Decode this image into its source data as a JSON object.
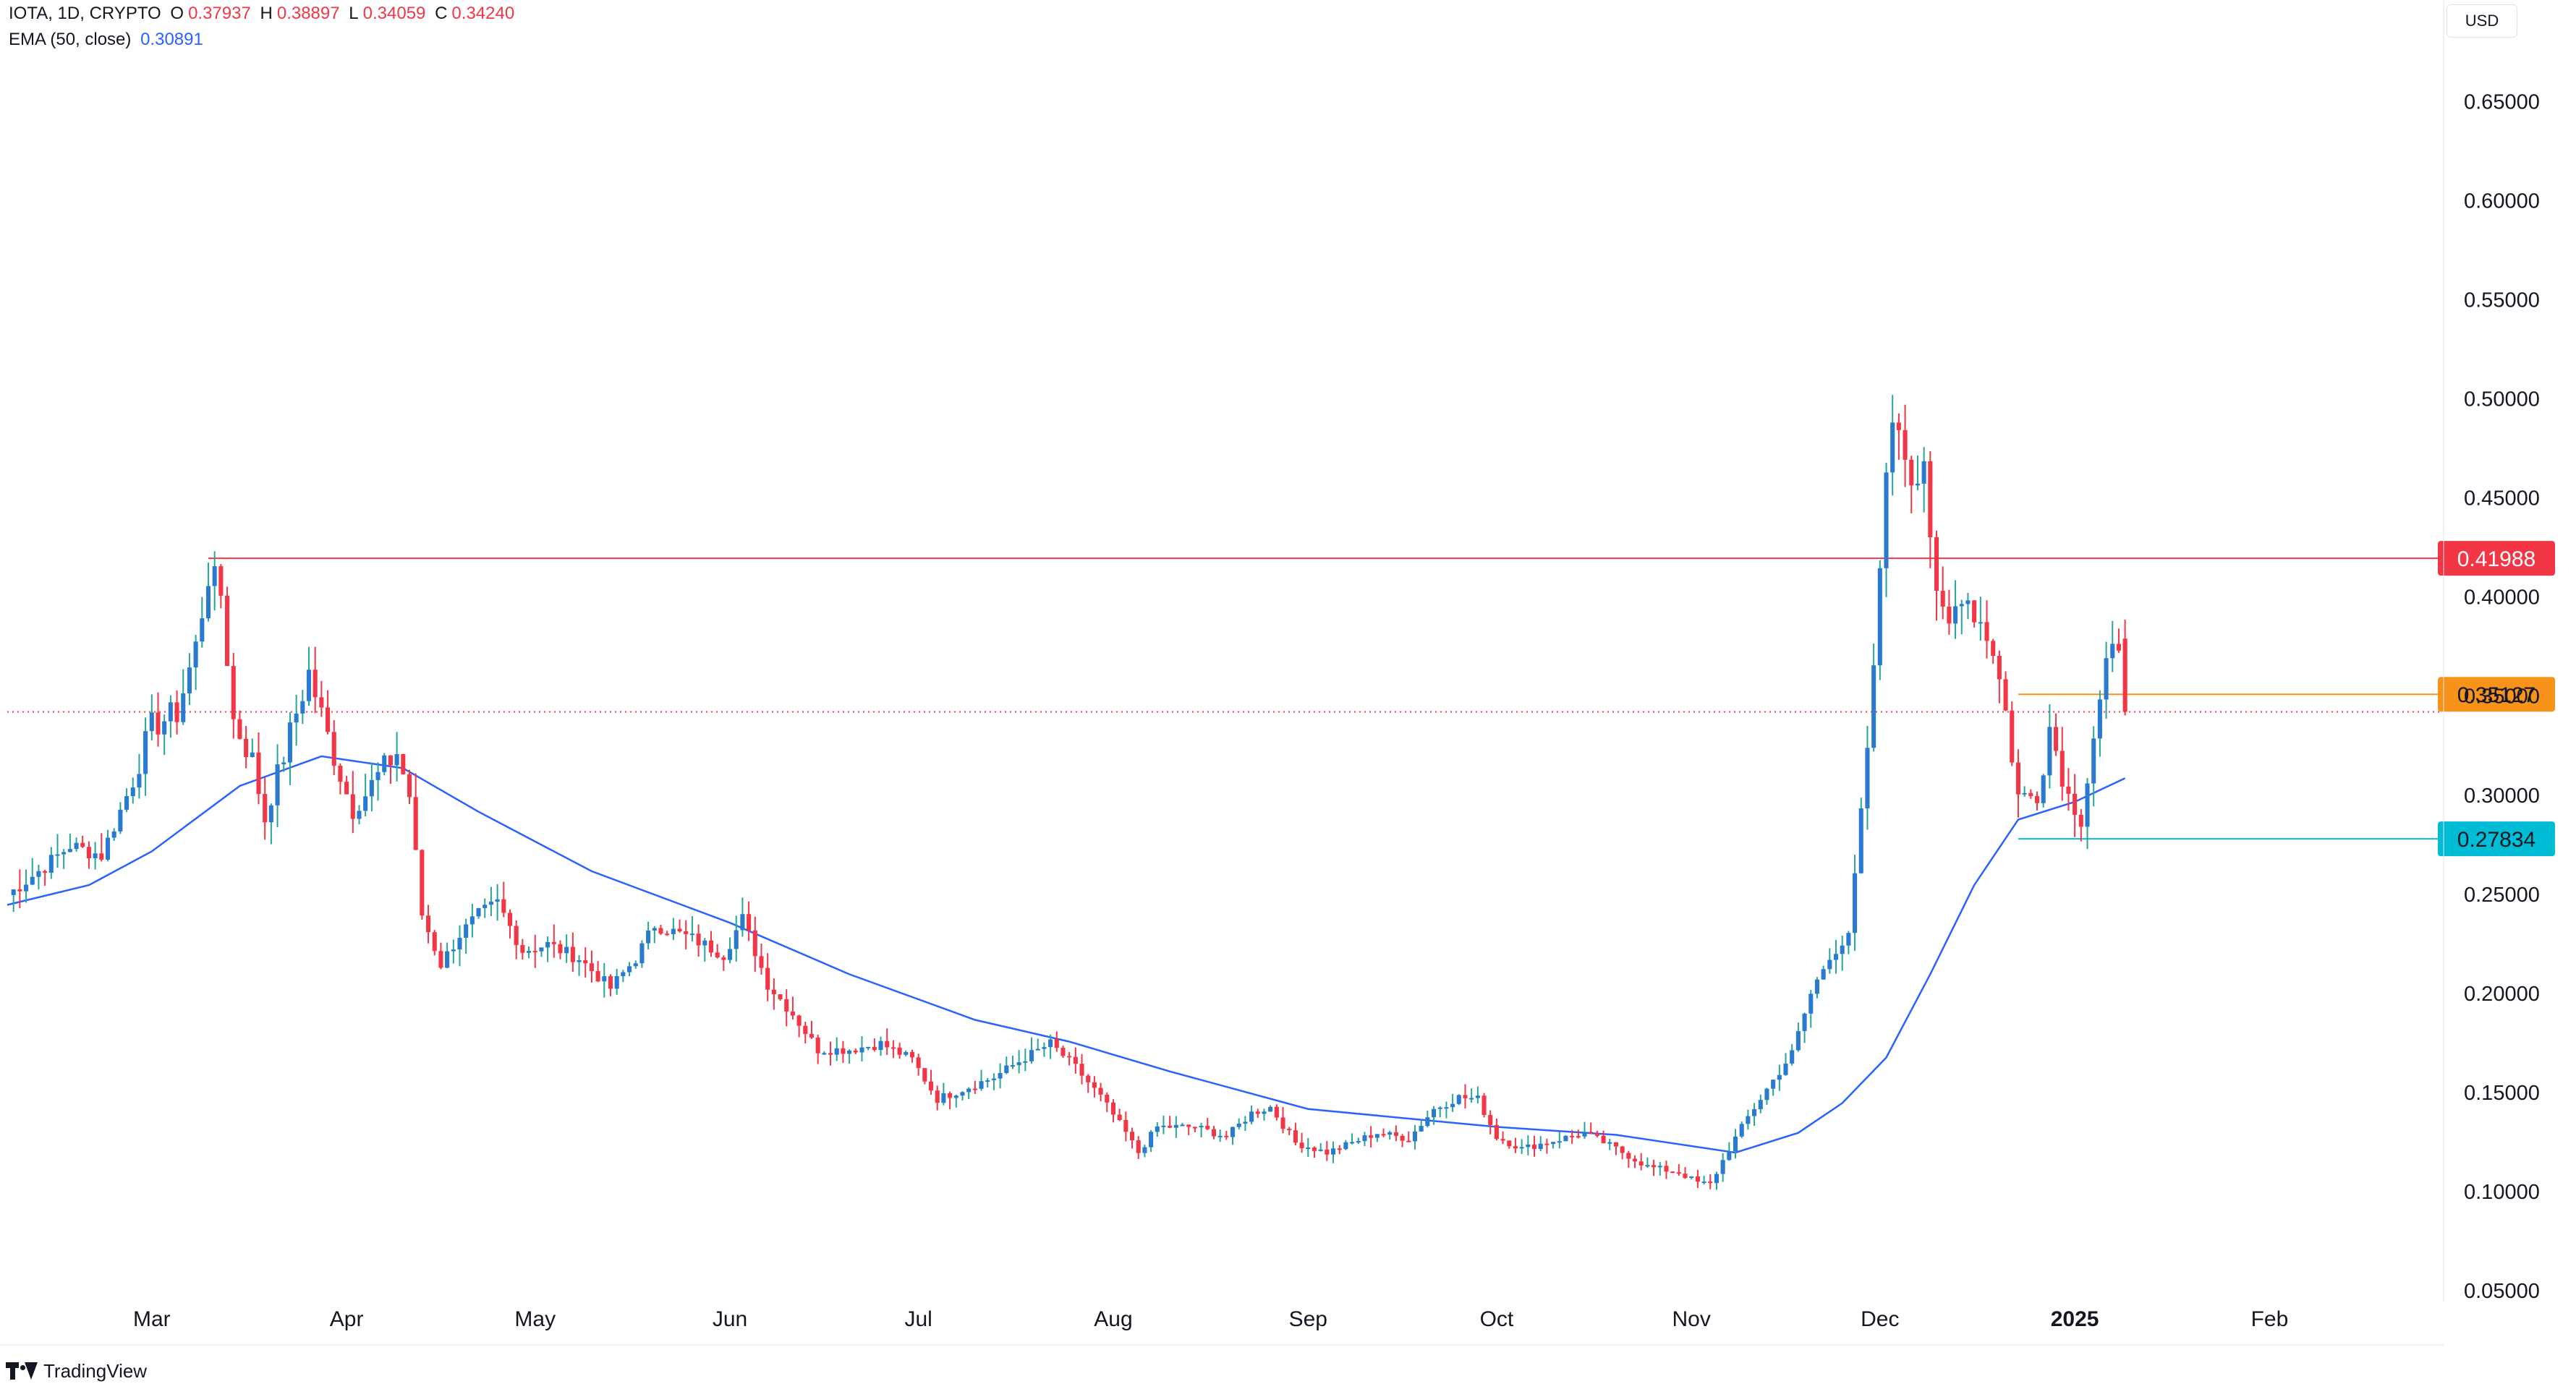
{
  "legend": {
    "symbol": "IOTA, 1D, CRYPTO",
    "o_label": "O",
    "o_value": "0.37937",
    "h_label": "H",
    "h_value": "0.38897",
    "l_label": "L",
    "l_value": "0.34059",
    "c_label": "C",
    "c_value": "0.34240",
    "ema_label": "EMA (50, close)",
    "ema_value": "0.30891"
  },
  "currency": "USD",
  "branding": "TradingView",
  "colors": {
    "up": "#2a7ad0",
    "down": "#f23645",
    "wick_up": "#26a69a",
    "wick_down": "#f23645",
    "ema": "#2962ff",
    "resistance": "#f23645",
    "mid_level": "#f7931a",
    "support": "#00bcd4",
    "last_price": "#f23645",
    "axis_text": "#131722"
  },
  "chart_data": {
    "type": "candlestick",
    "symbol": "IOTA",
    "interval": "1D",
    "exchange": "CRYPTO",
    "title": "",
    "xlabel": "",
    "ylabel": "",
    "ylim": [
      0.05,
      0.66
    ],
    "y_ticks": [
      "0.05000",
      "0.10000",
      "0.15000",
      "0.20000",
      "0.25000",
      "0.30000",
      "0.35000",
      "0.40000",
      "0.45000",
      "0.50000",
      "0.55000",
      "0.60000",
      "0.65000"
    ],
    "x_ticks": [
      {
        "label": "Mar",
        "date": "2024-03-01"
      },
      {
        "label": "Apr",
        "date": "2024-04-01"
      },
      {
        "label": "May",
        "date": "2024-05-01"
      },
      {
        "label": "Jun",
        "date": "2024-06-01"
      },
      {
        "label": "Jul",
        "date": "2024-07-01"
      },
      {
        "label": "Aug",
        "date": "2024-08-01"
      },
      {
        "label": "Sep",
        "date": "2024-09-01"
      },
      {
        "label": "Oct",
        "date": "2024-10-01"
      },
      {
        "label": "Nov",
        "date": "2024-11-01"
      },
      {
        "label": "Dec",
        "date": "2024-12-01"
      },
      {
        "label": "2025",
        "date": "2025-01-01"
      },
      {
        "label": "Feb",
        "date": "2025-02-01"
      }
    ],
    "x_range": [
      "2024-02-07",
      "2025-02-28"
    ],
    "grid": false,
    "legend_position": "top-left",
    "price_path": [
      [
        "2024-02-07",
        0.25
      ],
      [
        "2024-02-12",
        0.262
      ],
      [
        "2024-02-17",
        0.275
      ],
      [
        "2024-02-22",
        0.27
      ],
      [
        "2024-02-26",
        0.3
      ],
      [
        "2024-03-01",
        0.335
      ],
      [
        "2024-03-05",
        0.342
      ],
      [
        "2024-03-08",
        0.375
      ],
      [
        "2024-03-10",
        0.412
      ],
      [
        "2024-03-12",
        0.402
      ],
      [
        "2024-03-14",
        0.338
      ],
      [
        "2024-03-17",
        0.318
      ],
      [
        "2024-03-19",
        0.288
      ],
      [
        "2024-03-21",
        0.31
      ],
      [
        "2024-03-24",
        0.342
      ],
      [
        "2024-03-26",
        0.362
      ],
      [
        "2024-03-29",
        0.33
      ],
      [
        "2024-04-02",
        0.292
      ],
      [
        "2024-04-06",
        0.31
      ],
      [
        "2024-04-09",
        0.322
      ],
      [
        "2024-04-11",
        0.3
      ],
      [
        "2024-04-13",
        0.24
      ],
      [
        "2024-04-16",
        0.215
      ],
      [
        "2024-04-19",
        0.23
      ],
      [
        "2024-04-22",
        0.24
      ],
      [
        "2024-04-25",
        0.246
      ],
      [
        "2024-04-29",
        0.222
      ],
      [
        "2024-05-03",
        0.225
      ],
      [
        "2024-05-08",
        0.218
      ],
      [
        "2024-05-13",
        0.203
      ],
      [
        "2024-05-17",
        0.218
      ],
      [
        "2024-05-20",
        0.235
      ],
      [
        "2024-05-26",
        0.228
      ],
      [
        "2024-05-31",
        0.22
      ],
      [
        "2024-06-03",
        0.238
      ],
      [
        "2024-06-07",
        0.205
      ],
      [
        "2024-06-11",
        0.19
      ],
      [
        "2024-06-15",
        0.172
      ],
      [
        "2024-06-20",
        0.172
      ],
      [
        "2024-06-25",
        0.175
      ],
      [
        "2024-06-30",
        0.167
      ],
      [
        "2024-07-04",
        0.147
      ],
      [
        "2024-07-08",
        0.152
      ],
      [
        "2024-07-13",
        0.158
      ],
      [
        "2024-07-18",
        0.168
      ],
      [
        "2024-07-22",
        0.175
      ],
      [
        "2024-07-26",
        0.163
      ],
      [
        "2024-07-30",
        0.148
      ],
      [
        "2024-08-03",
        0.13
      ],
      [
        "2024-08-05",
        0.12
      ],
      [
        "2024-08-08",
        0.133
      ],
      [
        "2024-08-14",
        0.133
      ],
      [
        "2024-08-19",
        0.128
      ],
      [
        "2024-08-23",
        0.14
      ],
      [
        "2024-08-26",
        0.143
      ],
      [
        "2024-08-30",
        0.125
      ],
      [
        "2024-09-04",
        0.12
      ],
      [
        "2024-09-08",
        0.125
      ],
      [
        "2024-09-12",
        0.13
      ],
      [
        "2024-09-17",
        0.127
      ],
      [
        "2024-09-21",
        0.142
      ],
      [
        "2024-09-25",
        0.148
      ],
      [
        "2024-09-28",
        0.147
      ],
      [
        "2024-10-01",
        0.128
      ],
      [
        "2024-10-05",
        0.122
      ],
      [
        "2024-10-10",
        0.126
      ],
      [
        "2024-10-15",
        0.13
      ],
      [
        "2024-10-20",
        0.122
      ],
      [
        "2024-10-25",
        0.113
      ],
      [
        "2024-10-30",
        0.11
      ],
      [
        "2024-11-02",
        0.105
      ],
      [
        "2024-11-04",
        0.104
      ],
      [
        "2024-11-07",
        0.122
      ],
      [
        "2024-11-10",
        0.138
      ],
      [
        "2024-11-13",
        0.152
      ],
      [
        "2024-11-17",
        0.17
      ],
      [
        "2024-11-20",
        0.2
      ],
      [
        "2024-11-23",
        0.22
      ],
      [
        "2024-11-26",
        0.228
      ],
      [
        "2024-11-28",
        0.29
      ],
      [
        "2024-11-30",
        0.36
      ],
      [
        "2024-12-02",
        0.472
      ],
      [
        "2024-12-04",
        0.488
      ],
      [
        "2024-12-06",
        0.462
      ],
      [
        "2024-12-08",
        0.472
      ],
      [
        "2024-12-10",
        0.395
      ],
      [
        "2024-12-12",
        0.385
      ],
      [
        "2024-12-14",
        0.405
      ],
      [
        "2024-12-17",
        0.388
      ],
      [
        "2024-12-19",
        0.375
      ],
      [
        "2024-12-21",
        0.342
      ],
      [
        "2024-12-23",
        0.3
      ],
      [
        "2024-12-26",
        0.3
      ],
      [
        "2024-12-28",
        0.335
      ],
      [
        "2024-12-31",
        0.3
      ],
      [
        "2025-01-02",
        0.288
      ],
      [
        "2025-01-04",
        0.33
      ],
      [
        "2025-01-06",
        0.362
      ],
      [
        "2025-01-08",
        0.379
      ],
      [
        "2025-01-09",
        0.3424
      ]
    ],
    "series": [
      {
        "name": "EMA (50, close)",
        "values": [
          [
            "2024-02-07",
            0.245
          ],
          [
            "2024-02-20",
            0.255
          ],
          [
            "2024-03-01",
            0.272
          ],
          [
            "2024-03-15",
            0.305
          ],
          [
            "2024-03-28",
            0.32
          ],
          [
            "2024-04-10",
            0.314
          ],
          [
            "2024-04-22",
            0.292
          ],
          [
            "2024-05-10",
            0.262
          ],
          [
            "2024-06-01",
            0.236
          ],
          [
            "2024-06-20",
            0.21
          ],
          [
            "2024-07-10",
            0.187
          ],
          [
            "2024-07-25",
            0.176
          ],
          [
            "2024-08-10",
            0.161
          ],
          [
            "2024-09-01",
            0.142
          ],
          [
            "2024-10-01",
            0.133
          ],
          [
            "2024-10-20",
            0.129
          ],
          [
            "2024-11-08",
            0.12
          ],
          [
            "2024-11-18",
            0.13
          ],
          [
            "2024-11-25",
            0.145
          ],
          [
            "2024-12-02",
            0.168
          ],
          [
            "2024-12-09",
            0.21
          ],
          [
            "2024-12-16",
            0.255
          ],
          [
            "2024-12-23",
            0.288
          ],
          [
            "2025-01-01",
            0.297
          ],
          [
            "2025-01-09",
            0.30891
          ]
        ]
      }
    ],
    "horizontal_levels": [
      {
        "value": 0.41988,
        "label": "0.41988",
        "style": "solid",
        "color": "#f23645",
        "from_date": "2024-03-10"
      },
      {
        "value": 0.35127,
        "label": "0.35127",
        "style": "solid",
        "color": "#f7931a",
        "from_date": "2024-12-23"
      },
      {
        "value": 0.27834,
        "label": "0.27834",
        "style": "solid",
        "color": "#00bcd4",
        "from_date": "2024-12-23"
      },
      {
        "value": 0.3424,
        "label": "",
        "style": "dotted",
        "color": "#f23645",
        "from_date": "2024-02-07"
      }
    ],
    "last_bar": {
      "date": "2025-01-09",
      "open": 0.37937,
      "high": 0.38897,
      "low": 0.34059,
      "close": 0.3424
    }
  }
}
